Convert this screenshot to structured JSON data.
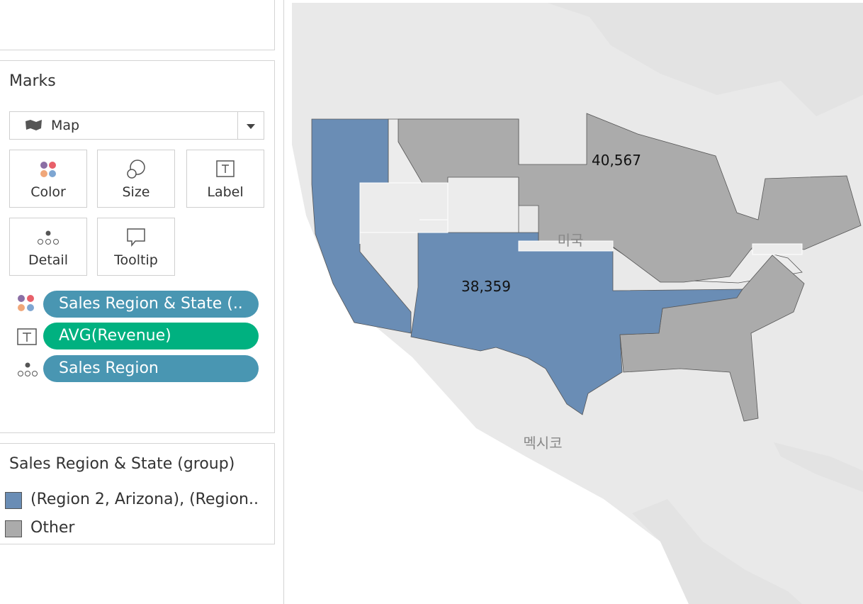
{
  "marks": {
    "title": "Marks",
    "mark_type": "Map",
    "cards": [
      "Color",
      "Size",
      "Label",
      "Detail",
      "Tooltip"
    ],
    "pills": [
      "Sales Region & State (..",
      "AVG(Revenue)",
      "Sales Region"
    ]
  },
  "legend": {
    "title": "Sales Region & State (group)",
    "items": [
      {
        "label": "(Region 2, Arizona), (Region..",
        "color": "#6a8db5"
      },
      {
        "label": "Other",
        "color": "#ababab"
      }
    ]
  },
  "map": {
    "labels": [
      "40,567",
      "38,359"
    ],
    "places": [
      "미국",
      "멕시코"
    ]
  }
}
